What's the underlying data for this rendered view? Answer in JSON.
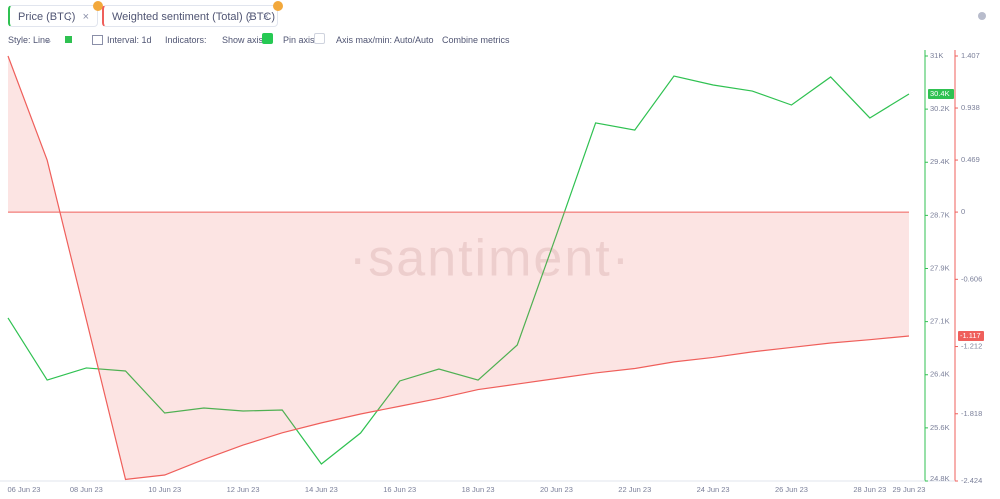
{
  "toolbar": {
    "style": "Style: Line",
    "interval": "Interval: 1d",
    "indicators": "Indicators:",
    "show_axis": "Show axis",
    "pin_axis": "Pin axis",
    "axis_minmax": "Axis max/min: Auto/Auto",
    "combine": "Combine metrics"
  },
  "chart_data": {
    "type": "line",
    "watermark": "·santiment·",
    "categories": [
      "06 Jun 23",
      null,
      "08 Jun 23",
      null,
      "10 Jun 23",
      null,
      "12 Jun 23",
      null,
      "14 Jun 23",
      null,
      "16 Jun 23",
      null,
      "18 Jun 23",
      null,
      "20 Jun 23",
      null,
      "22 Jun 23",
      null,
      "24 Jun 23",
      null,
      "26 Jun 23",
      null,
      "28 Jun 23",
      "29 Jun 23"
    ],
    "series": [
      {
        "name": "Price (BTC)",
        "color": "#2fc151",
        "last_value_label": "30.4K",
        "values": [
          27178,
          26273,
          26449,
          26405,
          25792,
          25865,
          25821,
          25836,
          25048,
          25500,
          26259,
          26434,
          26273,
          26784,
          28389,
          30023,
          29920,
          30708,
          30577,
          30489,
          30285,
          30694,
          30096,
          30446
        ]
      },
      {
        "name": "Weighted sentiment (Total) (BTC)",
        "color": "#ef5f5b",
        "axis": "y2",
        "area": true,
        "last_value_label": "-1.117",
        "values": [
          1.407,
          0.468,
          -0.97,
          -2.41,
          -2.37,
          -2.23,
          -2.1,
          -1.99,
          -1.9,
          -1.82,
          -1.75,
          -1.68,
          -1.6,
          -1.55,
          -1.5,
          -1.45,
          -1.41,
          -1.35,
          -1.31,
          -1.26,
          -1.22,
          -1.18,
          -1.15,
          -1.117
        ]
      }
    ],
    "ylim": [
      24800,
      31000
    ],
    "yticks": [
      {
        "value": 31000,
        "label": "31K"
      },
      {
        "value": 30225,
        "label": "30.2K"
      },
      {
        "value": 29450,
        "label": "29.4K"
      },
      {
        "value": 28675,
        "label": "28.7K"
      },
      {
        "value": 27900,
        "label": "27.9K"
      },
      {
        "value": 27125,
        "label": "27.1K"
      },
      {
        "value": 26350,
        "label": "26.4K"
      },
      {
        "value": 25575,
        "label": "25.6K"
      },
      {
        "value": 24800,
        "label": "24.8K"
      }
    ],
    "y2lim": [
      -2.424,
      1.407
    ],
    "y2ticks": [
      1.407,
      0.938,
      0.469,
      0,
      -0.606,
      -1.212,
      -1.818,
      -2.424
    ]
  }
}
